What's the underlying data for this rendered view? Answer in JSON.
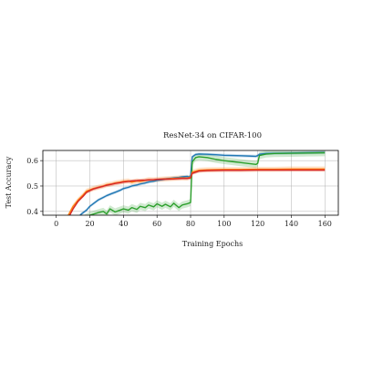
{
  "chart_data": {
    "type": "line",
    "title": "ResNet-34 on CIFAR-100",
    "xlabel": "Training Epochs",
    "ylabel": "Test Accuracy",
    "xlim": [
      -8,
      168
    ],
    "ylim": [
      0.385,
      0.64
    ],
    "xticks": [
      0,
      20,
      40,
      60,
      80,
      100,
      120,
      140,
      160
    ],
    "yticks": [
      0.4,
      0.5,
      0.6
    ],
    "xtick_labels": [
      "0",
      "20",
      "40",
      "60",
      "80",
      "100",
      "120",
      "140",
      "160"
    ],
    "ytick_labels": [
      "0.4",
      "0.5",
      "0.6"
    ],
    "grid": true,
    "legend": "none",
    "series": [
      {
        "color": "#1f77b4",
        "x": [
          0,
          8,
          12,
          15,
          18,
          20,
          22,
          25,
          28,
          30,
          33,
          35,
          38,
          40,
          43,
          45,
          48,
          50,
          53,
          55,
          58,
          60,
          63,
          65,
          68,
          70,
          73,
          75,
          78,
          79,
          80,
          81,
          83,
          85,
          90,
          95,
          100,
          105,
          110,
          115,
          119,
          120,
          121,
          125,
          130,
          140,
          150,
          160
        ],
        "y": [
          0.3,
          0.34,
          0.37,
          0.39,
          0.405,
          0.42,
          0.43,
          0.445,
          0.455,
          0.462,
          0.47,
          0.475,
          0.483,
          0.49,
          0.495,
          0.5,
          0.504,
          0.508,
          0.512,
          0.516,
          0.519,
          0.522,
          0.525,
          0.528,
          0.53,
          0.532,
          0.534,
          0.536,
          0.538,
          0.535,
          0.54,
          0.615,
          0.624,
          0.626,
          0.625,
          0.623,
          0.621,
          0.62,
          0.619,
          0.618,
          0.617,
          0.62,
          0.625,
          0.628,
          0.629,
          0.63,
          0.631,
          0.632
        ],
        "band": 0.006
      },
      {
        "color": "#2ca02c",
        "x": [
          0,
          10,
          16,
          20,
          25,
          28,
          30,
          32,
          35,
          38,
          40,
          43,
          45,
          48,
          50,
          53,
          55,
          58,
          60,
          63,
          65,
          68,
          70,
          73,
          75,
          78,
          80,
          81,
          83,
          85,
          90,
          95,
          100,
          105,
          110,
          115,
          119,
          120,
          121,
          125,
          130,
          140,
          150,
          160
        ],
        "y": [
          0.3,
          0.34,
          0.37,
          0.385,
          0.395,
          0.4,
          0.39,
          0.41,
          0.398,
          0.405,
          0.41,
          0.405,
          0.415,
          0.408,
          0.42,
          0.415,
          0.425,
          0.418,
          0.43,
          0.42,
          0.428,
          0.418,
          0.432,
          0.415,
          0.425,
          0.43,
          0.435,
          0.595,
          0.612,
          0.615,
          0.612,
          0.605,
          0.6,
          0.596,
          0.592,
          0.588,
          0.585,
          0.59,
          0.62,
          0.626,
          0.628,
          0.629,
          0.63,
          0.631
        ],
        "band": 0.014
      },
      {
        "color": "#ff7f0e",
        "x": [
          0,
          6,
          10,
          13,
          16,
          18,
          20,
          22,
          25,
          28,
          30,
          33,
          35,
          38,
          40,
          43,
          45,
          48,
          50,
          53,
          55,
          58,
          60,
          65,
          70,
          75,
          78,
          80,
          81,
          85,
          90,
          100,
          110,
          120,
          130,
          140,
          150,
          160
        ],
        "y": [
          0.3,
          0.37,
          0.42,
          0.445,
          0.465,
          0.48,
          0.485,
          0.49,
          0.495,
          0.5,
          0.505,
          0.508,
          0.512,
          0.515,
          0.518,
          0.52,
          0.515,
          0.52,
          0.518,
          0.522,
          0.525,
          0.524,
          0.526,
          0.528,
          0.53,
          0.532,
          0.531,
          0.535,
          0.555,
          0.562,
          0.564,
          0.565,
          0.565,
          0.566,
          0.566,
          0.567,
          0.567,
          0.567
        ],
        "band": 0.01
      },
      {
        "color": "#d62728",
        "x": [
          0,
          6,
          10,
          13,
          16,
          18,
          20,
          22,
          25,
          28,
          30,
          33,
          35,
          38,
          40,
          43,
          45,
          48,
          50,
          53,
          55,
          58,
          60,
          65,
          70,
          75,
          78,
          80,
          81,
          85,
          90,
          100,
          110,
          120,
          130,
          140,
          150,
          160
        ],
        "y": [
          0.3,
          0.36,
          0.41,
          0.44,
          0.46,
          0.475,
          0.482,
          0.488,
          0.494,
          0.499,
          0.503,
          0.507,
          0.51,
          0.513,
          0.516,
          0.518,
          0.52,
          0.521,
          0.522,
          0.523,
          0.524,
          0.525,
          0.526,
          0.527,
          0.528,
          0.53,
          0.53,
          0.532,
          0.55,
          0.559,
          0.561,
          0.562,
          0.562,
          0.563,
          0.563,
          0.563,
          0.563,
          0.563
        ],
        "band": 0.006
      }
    ]
  }
}
